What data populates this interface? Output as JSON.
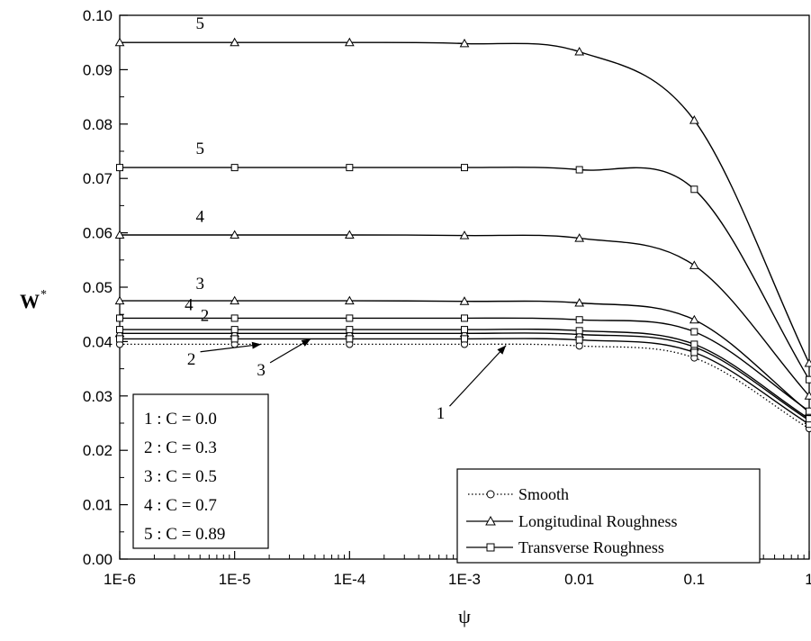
{
  "chart_data": {
    "type": "line",
    "title": "",
    "xlabel": "ψ",
    "ylabel": "W*",
    "ylabel_main": "W",
    "ylabel_sup": "*",
    "xscale": "log",
    "xlim": [
      1e-06,
      1
    ],
    "ylim": [
      0,
      0.1
    ],
    "grid": false,
    "x_ticks": [
      {
        "value": 1e-06,
        "label": "1E-6"
      },
      {
        "value": 1e-05,
        "label": "1E-5"
      },
      {
        "value": 0.0001,
        "label": "1E-4"
      },
      {
        "value": 0.001,
        "label": "1E-3"
      },
      {
        "value": 0.01,
        "label": "0.01"
      },
      {
        "value": 0.1,
        "label": "0.1"
      },
      {
        "value": 1,
        "label": "1"
      }
    ],
    "y_ticks": [
      {
        "value": 0.0,
        "label": "0.00"
      },
      {
        "value": 0.01,
        "label": "0.01"
      },
      {
        "value": 0.02,
        "label": "0.02"
      },
      {
        "value": 0.03,
        "label": "0.03"
      },
      {
        "value": 0.04,
        "label": "0.04"
      },
      {
        "value": 0.05,
        "label": "0.05"
      },
      {
        "value": 0.06,
        "label": "0.06"
      },
      {
        "value": 0.07,
        "label": "0.07"
      },
      {
        "value": 0.08,
        "label": "0.08"
      },
      {
        "value": 0.09,
        "label": "0.09"
      },
      {
        "value": 0.1,
        "label": "0.10"
      }
    ],
    "marker_x": [
      1e-06,
      1e-05,
      0.0001,
      0.001,
      0.01,
      0.1,
      1
    ],
    "series": [
      {
        "name": "Smooth",
        "marker": "circle",
        "line": "dotted",
        "c_label": "1",
        "x": [
          1e-06,
          1e-05,
          0.0001,
          0.001,
          0.01,
          0.1,
          1
        ],
        "values": [
          0.0395,
          0.0395,
          0.0395,
          0.0395,
          0.0392,
          0.037,
          0.024
        ]
      },
      {
        "name": "Longitudinal Roughness",
        "marker": "triangle",
        "line": "solid",
        "c_label": "2",
        "x": [
          1e-06,
          1e-05,
          0.0001,
          0.001,
          0.01,
          0.1,
          1
        ],
        "values": [
          0.0415,
          0.0415,
          0.0415,
          0.0415,
          0.0413,
          0.039,
          0.0255
        ]
      },
      {
        "name": "Transverse Roughness",
        "marker": "square",
        "line": "solid",
        "c_label": "2",
        "x": [
          1e-06,
          1e-05,
          0.0001,
          0.001,
          0.01,
          0.1,
          1
        ],
        "values": [
          0.0405,
          0.0405,
          0.0405,
          0.0405,
          0.0403,
          0.038,
          0.0248
        ]
      },
      {
        "name": "Longitudinal Roughness",
        "marker": "triangle",
        "line": "solid",
        "c_label": "3",
        "x": [
          1e-06,
          1e-05,
          0.0001,
          0.001,
          0.01,
          0.1,
          1
        ],
        "values": [
          0.0475,
          0.0475,
          0.0475,
          0.0474,
          0.0471,
          0.044,
          0.027
        ]
      },
      {
        "name": "Transverse Roughness",
        "marker": "square",
        "line": "solid",
        "c_label": "3",
        "x": [
          1e-06,
          1e-05,
          0.0001,
          0.001,
          0.01,
          0.1,
          1
        ],
        "values": [
          0.0422,
          0.0422,
          0.0422,
          0.0422,
          0.042,
          0.0395,
          0.0258
        ]
      },
      {
        "name": "Longitudinal Roughness",
        "marker": "triangle",
        "line": "solid",
        "c_label": "4",
        "x": [
          1e-06,
          1e-05,
          0.0001,
          0.001,
          0.01,
          0.1,
          1
        ],
        "values": [
          0.0596,
          0.0596,
          0.0596,
          0.0595,
          0.059,
          0.054,
          0.03
        ]
      },
      {
        "name": "Transverse Roughness",
        "marker": "square",
        "line": "solid",
        "c_label": "4",
        "x": [
          1e-06,
          1e-05,
          0.0001,
          0.001,
          0.01,
          0.1,
          1
        ],
        "values": [
          0.0443,
          0.0443,
          0.0443,
          0.0443,
          0.044,
          0.0418,
          0.0272
        ]
      },
      {
        "name": "Longitudinal Roughness",
        "marker": "triangle",
        "line": "solid",
        "c_label": "5",
        "x": [
          1e-06,
          1e-05,
          0.0001,
          0.001,
          0.01,
          0.1,
          1
        ],
        "values": [
          0.095,
          0.095,
          0.095,
          0.0948,
          0.0933,
          0.0807,
          0.036
        ]
      },
      {
        "name": "Transverse Roughness",
        "marker": "square",
        "line": "solid",
        "c_label": "5",
        "x": [
          1e-06,
          1e-05,
          0.0001,
          0.001,
          0.01,
          0.1,
          1
        ],
        "values": [
          0.072,
          0.072,
          0.072,
          0.072,
          0.0716,
          0.068,
          0.033
        ]
      }
    ],
    "curve_labels": [
      {
        "text": "5",
        "x": 5e-06,
        "y": 0.0975
      },
      {
        "text": "5",
        "x": 5e-06,
        "y": 0.0745
      },
      {
        "text": "4",
        "x": 5e-06,
        "y": 0.062
      },
      {
        "text": "3",
        "x": 5e-06,
        "y": 0.0497
      },
      {
        "text": "4",
        "x": 4e-06,
        "y": 0.0458
      },
      {
        "text": "2",
        "x": 5.5e-06,
        "y": 0.0438
      }
    ],
    "pointer_labels": [
      {
        "text": "2",
        "text_x": 4.2e-06,
        "text_y": 0.0358,
        "arrow_x": 1.7e-05,
        "arrow_y": 0.0395
      },
      {
        "text": "3",
        "text_x": 1.7e-05,
        "text_y": 0.0338,
        "arrow_x": 4.6e-05,
        "arrow_y": 0.0405
      },
      {
        "text": "1",
        "text_x": 0.00062,
        "text_y": 0.0258,
        "arrow_x": 0.0023,
        "arrow_y": 0.0393
      }
    ],
    "c_values_box": [
      "1 : C = 0.0",
      "2 : C = 0.3",
      "3 : C = 0.5",
      "4 : C = 0.7",
      "5 : C = 0.89"
    ],
    "legend": {
      "position": "bottom-right",
      "entries": [
        {
          "label": "Smooth",
          "marker": "circle",
          "line": "dotted"
        },
        {
          "label": "Longitudinal Roughness",
          "marker": "triangle",
          "line": "solid"
        },
        {
          "label": "Transverse Roughness",
          "marker": "square",
          "line": "solid"
        }
      ]
    },
    "colors": {
      "line": "#000000",
      "background": "#ffffff"
    }
  }
}
